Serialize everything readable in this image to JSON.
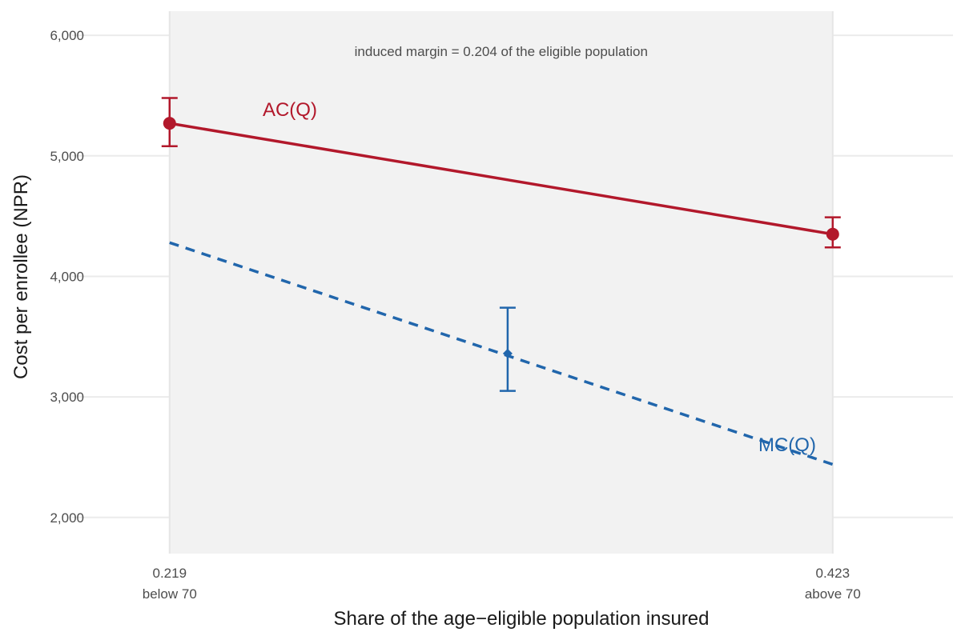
{
  "chart_data": {
    "type": "line",
    "xlabel": "Share of the age−eligible population insured",
    "ylabel": "Cost per enrollee (NPR)",
    "xlim": [
      0.189,
      0.46
    ],
    "ylim": [
      1700,
      6200
    ],
    "grid": true,
    "shaded_region": {
      "x": [
        0.219,
        0.423
      ]
    },
    "y_ticks": [
      {
        "value": 2000,
        "label": "2,000"
      },
      {
        "value": 3000,
        "label": "3,000"
      },
      {
        "value": 4000,
        "label": "4,000"
      },
      {
        "value": 5000,
        "label": "5,000"
      },
      {
        "value": 6000,
        "label": "6,000"
      }
    ],
    "x_ticks": [
      {
        "value": 0.219,
        "label": "0.219",
        "sublabel": "below 70"
      },
      {
        "value": 0.423,
        "label": "0.423",
        "sublabel": "above 70"
      }
    ],
    "annotation": "induced margin = 0.204 of the eligible population",
    "series": [
      {
        "name": "AC(Q)",
        "color": "#b2182b",
        "style": "solid",
        "label_at": {
          "x": 0.256,
          "y": 5330
        },
        "points": [
          {
            "x": 0.219,
            "y": 5270,
            "lo": 5080,
            "hi": 5480
          },
          {
            "x": 0.423,
            "y": 4350,
            "lo": 4240,
            "hi": 4490
          }
        ]
      },
      {
        "name": "MC(Q)",
        "color": "#2166ac",
        "style": "dashed",
        "label_at": {
          "x": 0.409,
          "y": 2550
        },
        "line": [
          {
            "x": 0.219,
            "y": 4280
          },
          {
            "x": 0.423,
            "y": 2440
          }
        ],
        "points": [
          {
            "x": 0.323,
            "y": 3360,
            "lo": 3050,
            "hi": 3740
          }
        ]
      }
    ]
  }
}
